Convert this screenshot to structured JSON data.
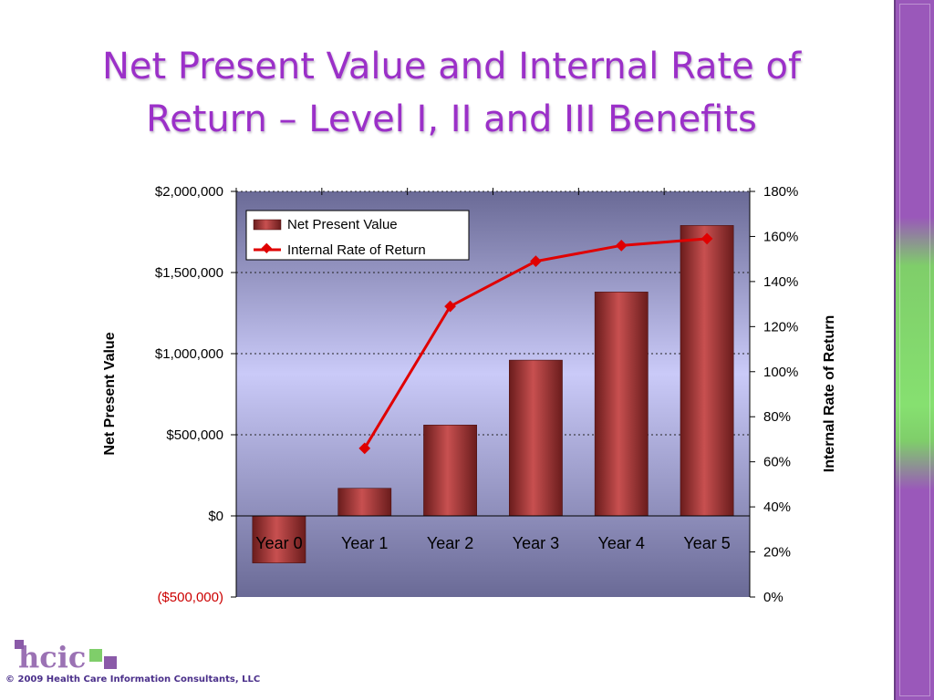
{
  "slide": {
    "title_line1": "Net Present Value and Internal Rate of",
    "title_line2": "Return – Level I, II and III Benefits",
    "footer": "© 2009 Health Care Information Consultants, LLC",
    "logo_text": "hcic"
  },
  "colors": {
    "title": "#9b30c8",
    "bar": "#b84040",
    "line": "#e00000",
    "negative_tick": "#cc0000"
  },
  "chart_data": {
    "type": "bar",
    "categories": [
      "Year 0",
      "Year 1",
      "Year 2",
      "Year 3",
      "Year 4",
      "Year 5"
    ],
    "series": [
      {
        "name": "Net Present Value",
        "type": "bar",
        "axis": "left",
        "values": [
          -290000,
          170000,
          560000,
          960000,
          1380000,
          1790000
        ]
      },
      {
        "name": "Internal Rate of Return",
        "type": "line",
        "axis": "right",
        "values": [
          null,
          0.66,
          1.29,
          1.49,
          1.56,
          1.59
        ]
      }
    ],
    "ylabel": "Net Present Value",
    "y2label": "Internal Rate of Return",
    "ylim": [
      -500000,
      2000000
    ],
    "y2lim": [
      0,
      1.8
    ],
    "yticks": [
      "($500,000)",
      "$0",
      "$500,000",
      "$1,000,000",
      "$1,500,000",
      "$2,000,000"
    ],
    "ytick_values": [
      -500000,
      0,
      500000,
      1000000,
      1500000,
      2000000
    ],
    "y2ticks": [
      "0%",
      "20%",
      "40%",
      "60%",
      "80%",
      "100%",
      "120%",
      "140%",
      "160%",
      "180%"
    ],
    "y2tick_values": [
      0,
      0.2,
      0.4,
      0.6,
      0.8,
      1.0,
      1.2,
      1.4,
      1.6,
      1.8
    ],
    "grid": "horizontal dashed",
    "legend_position": "top-left"
  }
}
